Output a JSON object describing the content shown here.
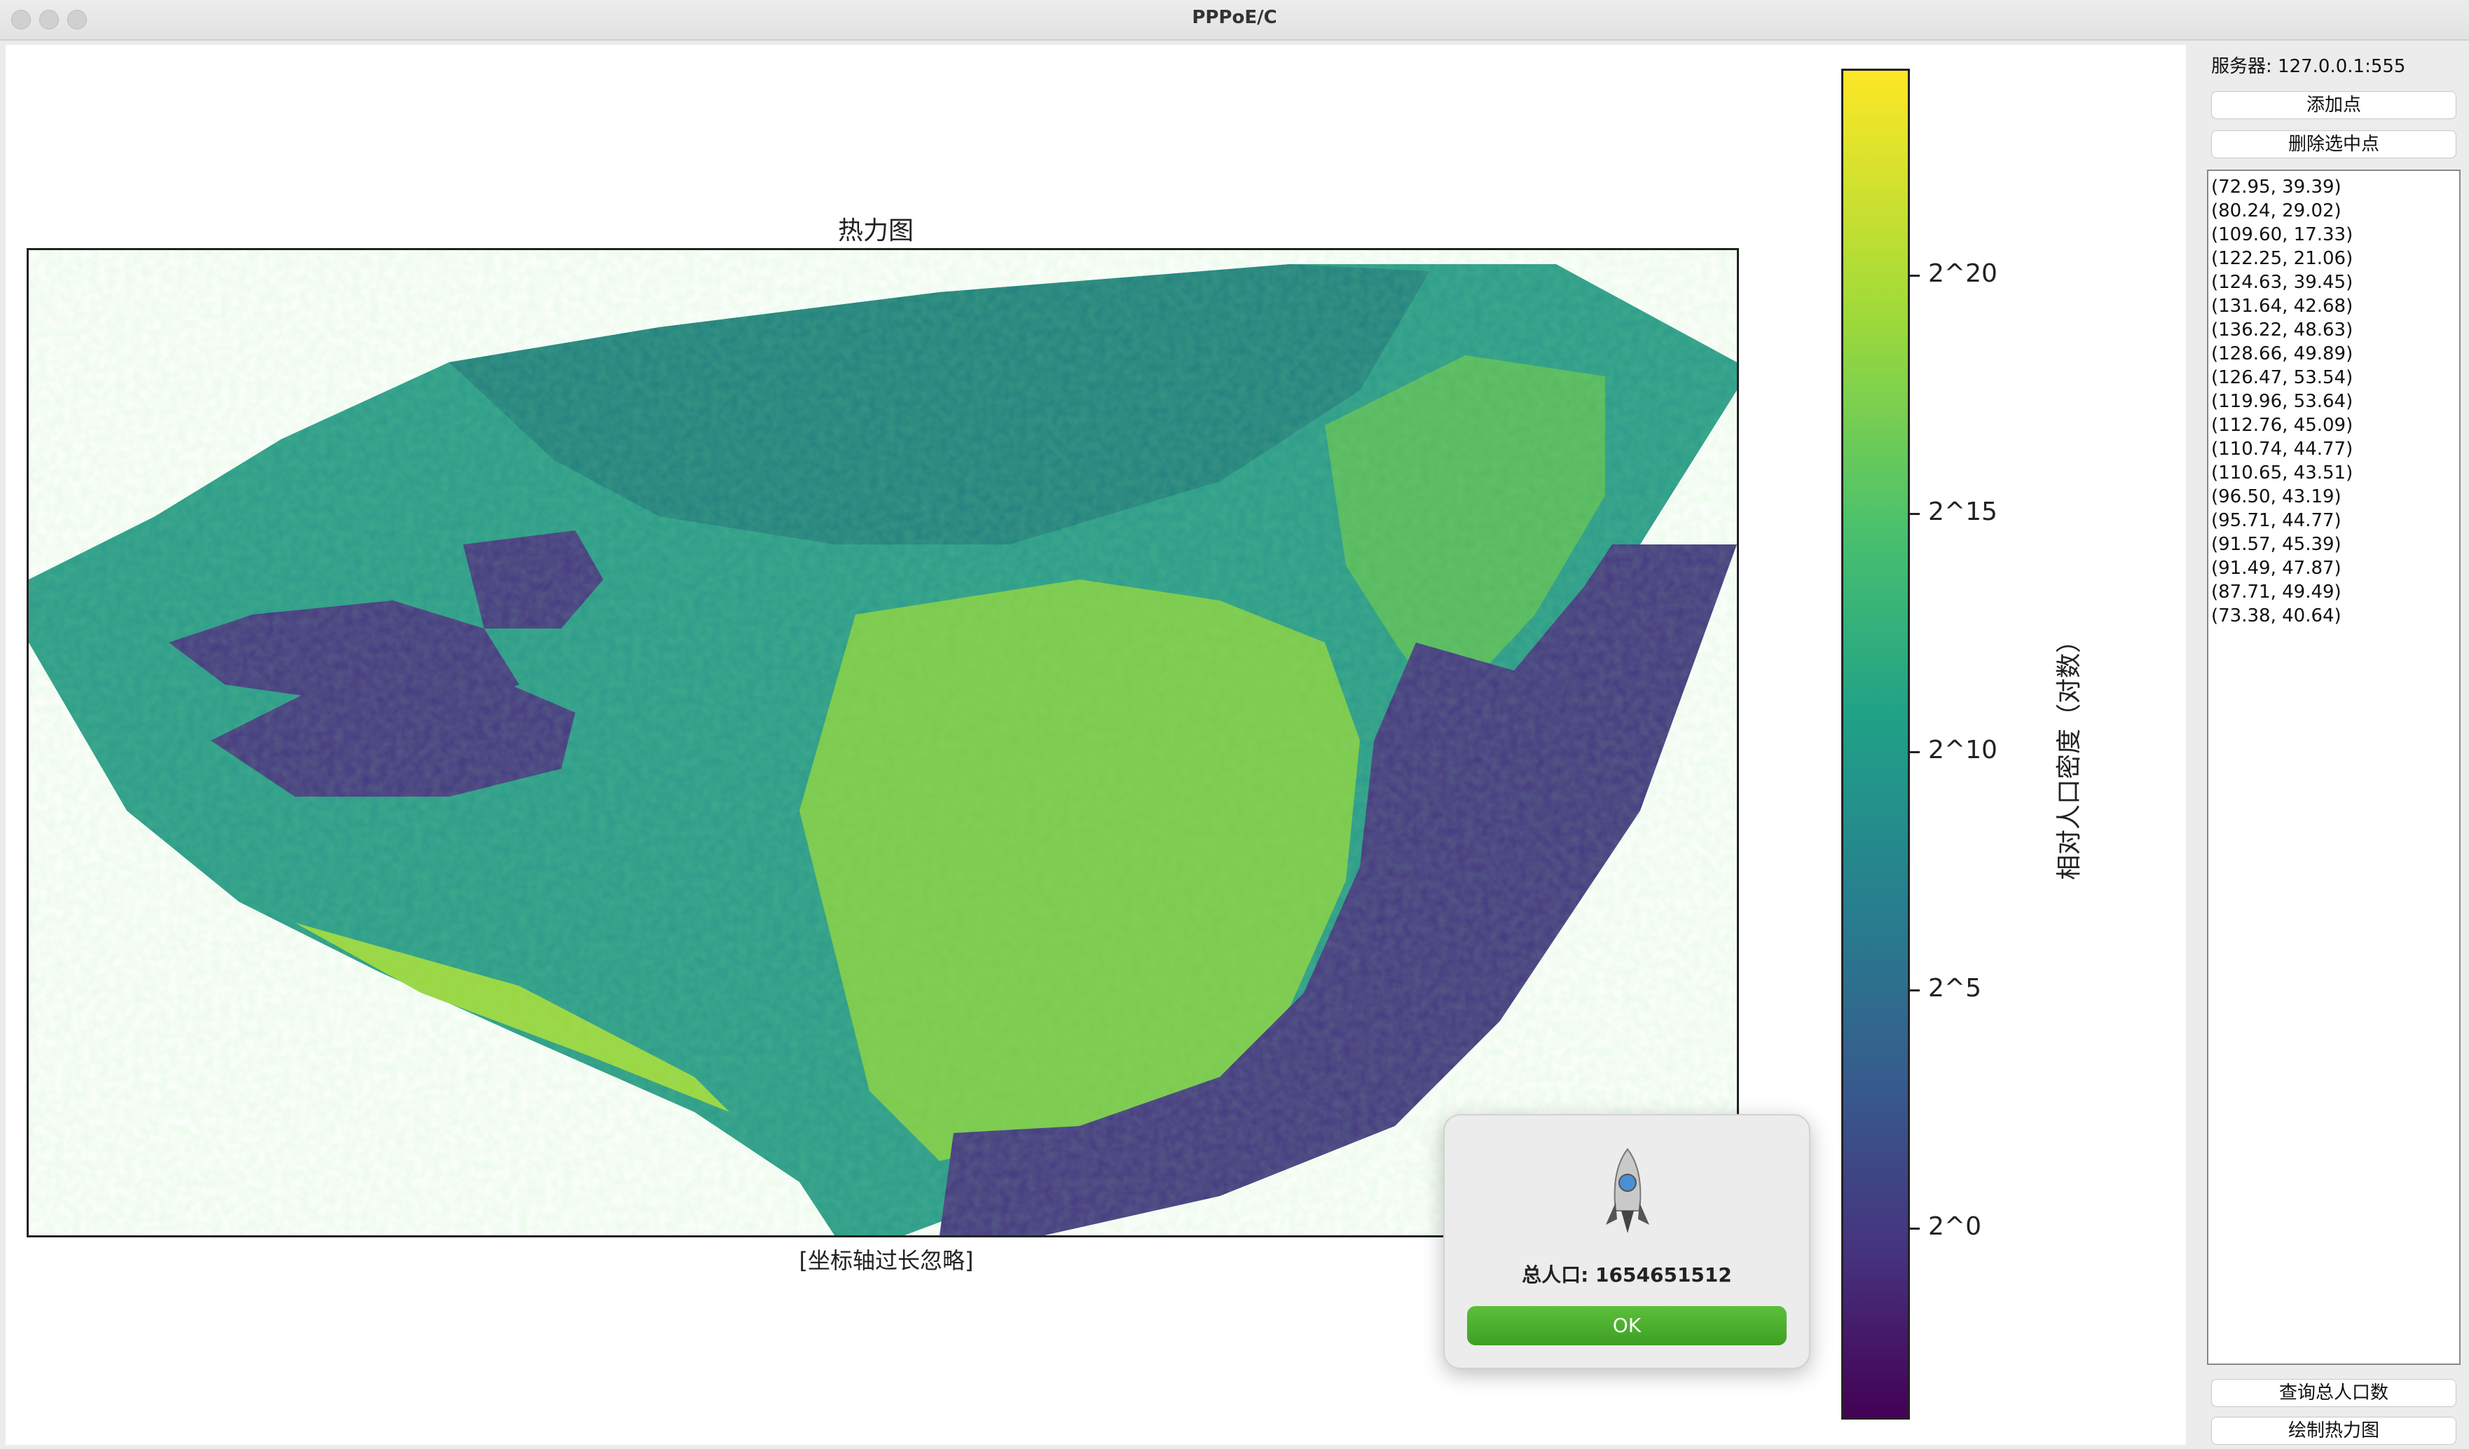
{
  "window": {
    "title": "PPPoE/C"
  },
  "plot": {
    "title": "热力图",
    "caption": "[坐标轴过长忽略]",
    "colorbar": {
      "label": "相对人口密度（对数）",
      "ticks": [
        "2^20",
        "2^15",
        "2^10",
        "2^5",
        "2^0"
      ],
      "colormap": "viridis"
    }
  },
  "sidebar": {
    "server_label": "服务器: 127.0.0.1:555",
    "add_point_label": "添加点",
    "delete_point_label": "删除选中点",
    "points": [
      "(72.95, 39.39)",
      "(80.24, 29.02)",
      "(109.60, 17.33)",
      "(122.25, 21.06)",
      "(124.63, 39.45)",
      "(131.64, 42.68)",
      "(136.22, 48.63)",
      "(128.66, 49.89)",
      "(126.47, 53.54)",
      "(119.96, 53.64)",
      "(112.76, 45.09)",
      "(110.74, 44.77)",
      "(110.65, 43.51)",
      "(96.50, 43.19)",
      "(95.71, 44.77)",
      "(91.57, 45.39)",
      "(91.49, 47.87)",
      "(87.71, 49.49)",
      "(73.38, 40.64)"
    ],
    "query_population_label": "查询总人口数",
    "draw_heatmap_label": "绘制热力图"
  },
  "dialog": {
    "icon": "rocket-icon",
    "message": "总人口: 1654651512",
    "ok_label": "OK"
  },
  "colors": {
    "low": "#440154",
    "mid": "#21918c",
    "high": "#fde725",
    "ok_button": "#4caf30"
  }
}
